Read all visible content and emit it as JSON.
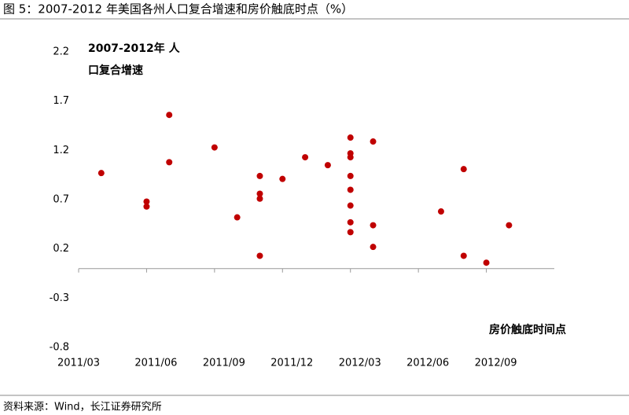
{
  "chart_data": {
    "type": "scatter",
    "title": "图 5：2007-2012 年美国各州人口复合增速和房价触底时点（%）",
    "y_label": [
      "2007-2012年 人",
      "口复合增速"
    ],
    "x_label": "房价触底时间点",
    "source": "资料来源：Wind，长江证券研究所",
    "x": [
      "2011/04",
      "2011/06",
      "2011/06",
      "2011/07",
      "2011/07",
      "2011/09",
      "2011/10",
      "2011/11",
      "2011/11",
      "2011/11",
      "2011/11",
      "2011/12",
      "2012/01",
      "2012/02",
      "2012/03",
      "2012/03",
      "2012/03",
      "2012/03",
      "2012/03",
      "2012/03",
      "2012/03",
      "2012/03",
      "2012/04",
      "2012/04",
      "2012/04",
      "2012/07",
      "2012/08",
      "2012/08",
      "2012/09",
      "2012/10"
    ],
    "values": [
      0.97,
      0.68,
      0.63,
      1.56,
      1.08,
      1.23,
      0.52,
      0.94,
      0.76,
      0.71,
      0.13,
      0.91,
      1.13,
      1.05,
      1.33,
      1.17,
      1.13,
      0.94,
      0.8,
      0.64,
      0.47,
      0.37,
      1.29,
      0.44,
      0.22,
      0.58,
      1.01,
      0.13,
      0.06,
      0.44
    ],
    "color": "#c00000",
    "xlim": [
      "2011/03",
      "2012/12"
    ],
    "xticks": [
      "2011/03",
      "2011/06",
      "2011/09",
      "2011/12",
      "2012/03",
      "2012/06",
      "2012/09"
    ],
    "ylim": [
      -0.8,
      2.2
    ],
    "yticks": [
      2.2,
      1.7,
      1.2,
      0.7,
      0.2,
      -0.3,
      -0.8
    ]
  }
}
